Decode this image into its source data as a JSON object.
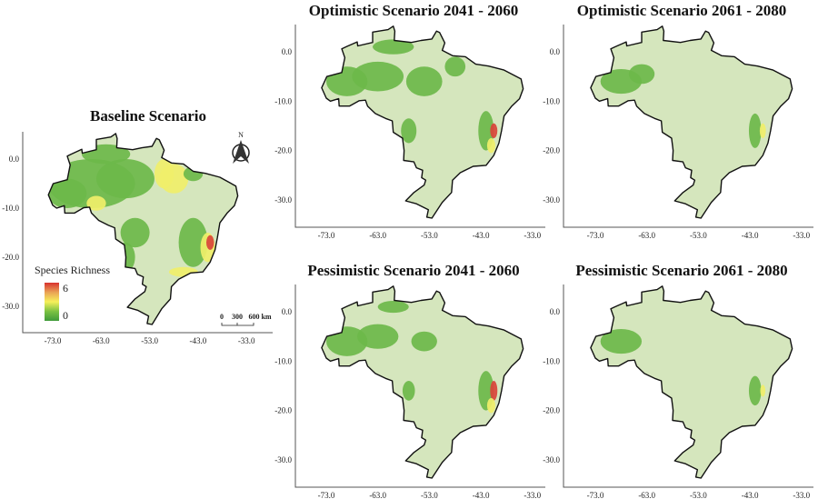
{
  "figure": {
    "panels": [
      {
        "id": "baseline",
        "title": "Baseline Scenario"
      },
      {
        "id": "opt-2041",
        "title": "Optimistic Scenario 2041 - 2060"
      },
      {
        "id": "opt-2061",
        "title": "Optimistic Scenario 2061 - 2080"
      },
      {
        "id": "pes-2041",
        "title": "Pessimistic Scenario 2041 - 2060"
      },
      {
        "id": "pes-2061",
        "title": "Pessimistic Scenario 2061 - 2080"
      }
    ],
    "x_ticks": [
      "-73.0",
      "-63.0",
      "-53.0",
      "-43.0",
      "-33.0"
    ],
    "y_ticks": [
      "0.0",
      "-10.0",
      "-20.0",
      "-30.0"
    ],
    "legend": {
      "title": "Species Richness",
      "max_label": "6",
      "min_label": "0",
      "colors": [
        "#3f9a3a",
        "#7cc242",
        "#f6f05a",
        "#e9a255",
        "#d8322f"
      ]
    },
    "north_arrow": {
      "label": "N"
    },
    "scale_bar": {
      "labels": [
        "0",
        "300",
        "600 km"
      ]
    },
    "colors": {
      "background_land": "#d5e6bd",
      "low_richness": "#6cb84a",
      "mid_richness": "#f0ef6a",
      "high_richness": "#d9443a",
      "outline": "#111111"
    }
  }
}
